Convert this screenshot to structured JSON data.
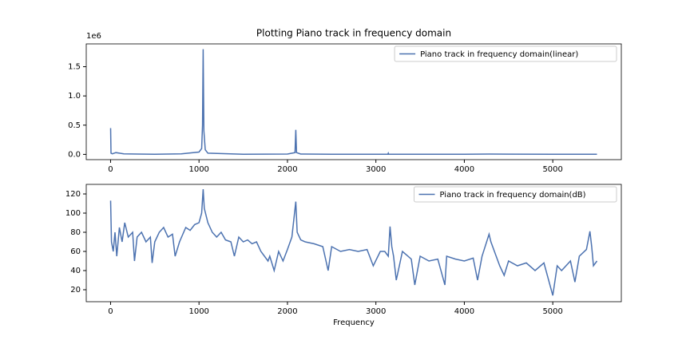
{
  "chart_data": [
    {
      "type": "line",
      "title": "Plotting Piano track in frequency domain",
      "offset_label": "1e6",
      "x": [
        0,
        5,
        20,
        60,
        100,
        150,
        300,
        500,
        800,
        1000,
        1030,
        1040,
        1047,
        1055,
        1070,
        1100,
        1500,
        2000,
        2085,
        2094,
        2103,
        2150,
        2500,
        3135,
        3140,
        3145,
        4000,
        4280,
        5000,
        5500
      ],
      "series": [
        {
          "name": "Piano track in frequency domain(linear)",
          "color": "#4c72b0",
          "values": [
            450000,
            20000,
            10000,
            30000,
            20000,
            10000,
            5000,
            3000,
            10000,
            40000,
            100000,
            500000,
            1800000,
            400000,
            80000,
            20000,
            3000,
            5000,
            30000,
            420000,
            30000,
            5000,
            2000,
            2000,
            20000,
            2000,
            1000,
            5000,
            2000,
            1000
          ]
        }
      ],
      "xlim": [
        -275,
        5775
      ],
      "xticks": [
        0,
        1000,
        2000,
        3000,
        4000,
        5000
      ],
      "ylim": [
        -90000,
        1890000
      ],
      "yticks": [
        {
          "value": 0,
          "label": "0.0"
        },
        {
          "value": 500000,
          "label": "0.5"
        },
        {
          "value": 1000000,
          "label": "1.0"
        },
        {
          "value": 1500000,
          "label": "1.5"
        }
      ],
      "legend": "upper right"
    },
    {
      "type": "line",
      "xlabel": "Frequency",
      "x": [
        0,
        10,
        30,
        50,
        70,
        100,
        130,
        160,
        200,
        250,
        270,
        300,
        350,
        400,
        450,
        470,
        500,
        550,
        600,
        650,
        700,
        730,
        780,
        850,
        900,
        950,
        1000,
        1030,
        1047,
        1060,
        1100,
        1150,
        1200,
        1250,
        1300,
        1360,
        1400,
        1450,
        1500,
        1550,
        1600,
        1650,
        1700,
        1780,
        1800,
        1850,
        1900,
        1950,
        2000,
        2050,
        2094,
        2110,
        2150,
        2200,
        2300,
        2400,
        2460,
        2500,
        2600,
        2700,
        2800,
        2900,
        2970,
        3050,
        3100,
        3140,
        3160,
        3180,
        3200,
        3230,
        3300,
        3400,
        3440,
        3500,
        3600,
        3700,
        3780,
        3800,
        3900,
        4000,
        4100,
        4150,
        4200,
        4280,
        4300,
        4400,
        4450,
        4500,
        4600,
        4700,
        4800,
        4900,
        5000,
        5050,
        5100,
        5200,
        5250,
        5300,
        5380,
        5420,
        5440,
        5460,
        5500
      ],
      "series": [
        {
          "name": "Piano track in frequency domain(dB)",
          "color": "#4c72b0",
          "values": [
            113,
            70,
            60,
            80,
            55,
            85,
            70,
            90,
            75,
            80,
            50,
            75,
            80,
            70,
            75,
            48,
            70,
            80,
            85,
            75,
            78,
            55,
            70,
            85,
            82,
            88,
            90,
            100,
            125,
            105,
            90,
            80,
            75,
            80,
            72,
            70,
            55,
            75,
            70,
            72,
            68,
            70,
            60,
            50,
            55,
            40,
            60,
            50,
            62,
            75,
            112,
            80,
            72,
            70,
            68,
            65,
            40,
            65,
            60,
            62,
            60,
            62,
            45,
            60,
            60,
            55,
            86,
            65,
            55,
            30,
            60,
            52,
            25,
            55,
            50,
            52,
            25,
            55,
            52,
            50,
            53,
            30,
            55,
            78,
            70,
            45,
            35,
            50,
            45,
            48,
            40,
            48,
            14,
            45,
            40,
            50,
            28,
            55,
            62,
            81,
            65,
            45,
            50
          ]
        }
      ],
      "xlim": [
        -275,
        5775
      ],
      "xticks": [
        0,
        1000,
        2000,
        3000,
        4000,
        5000
      ],
      "ylim": [
        7.5,
        130
      ],
      "yticks": [
        20,
        40,
        60,
        80,
        100,
        120
      ],
      "legend": "upper right"
    }
  ]
}
